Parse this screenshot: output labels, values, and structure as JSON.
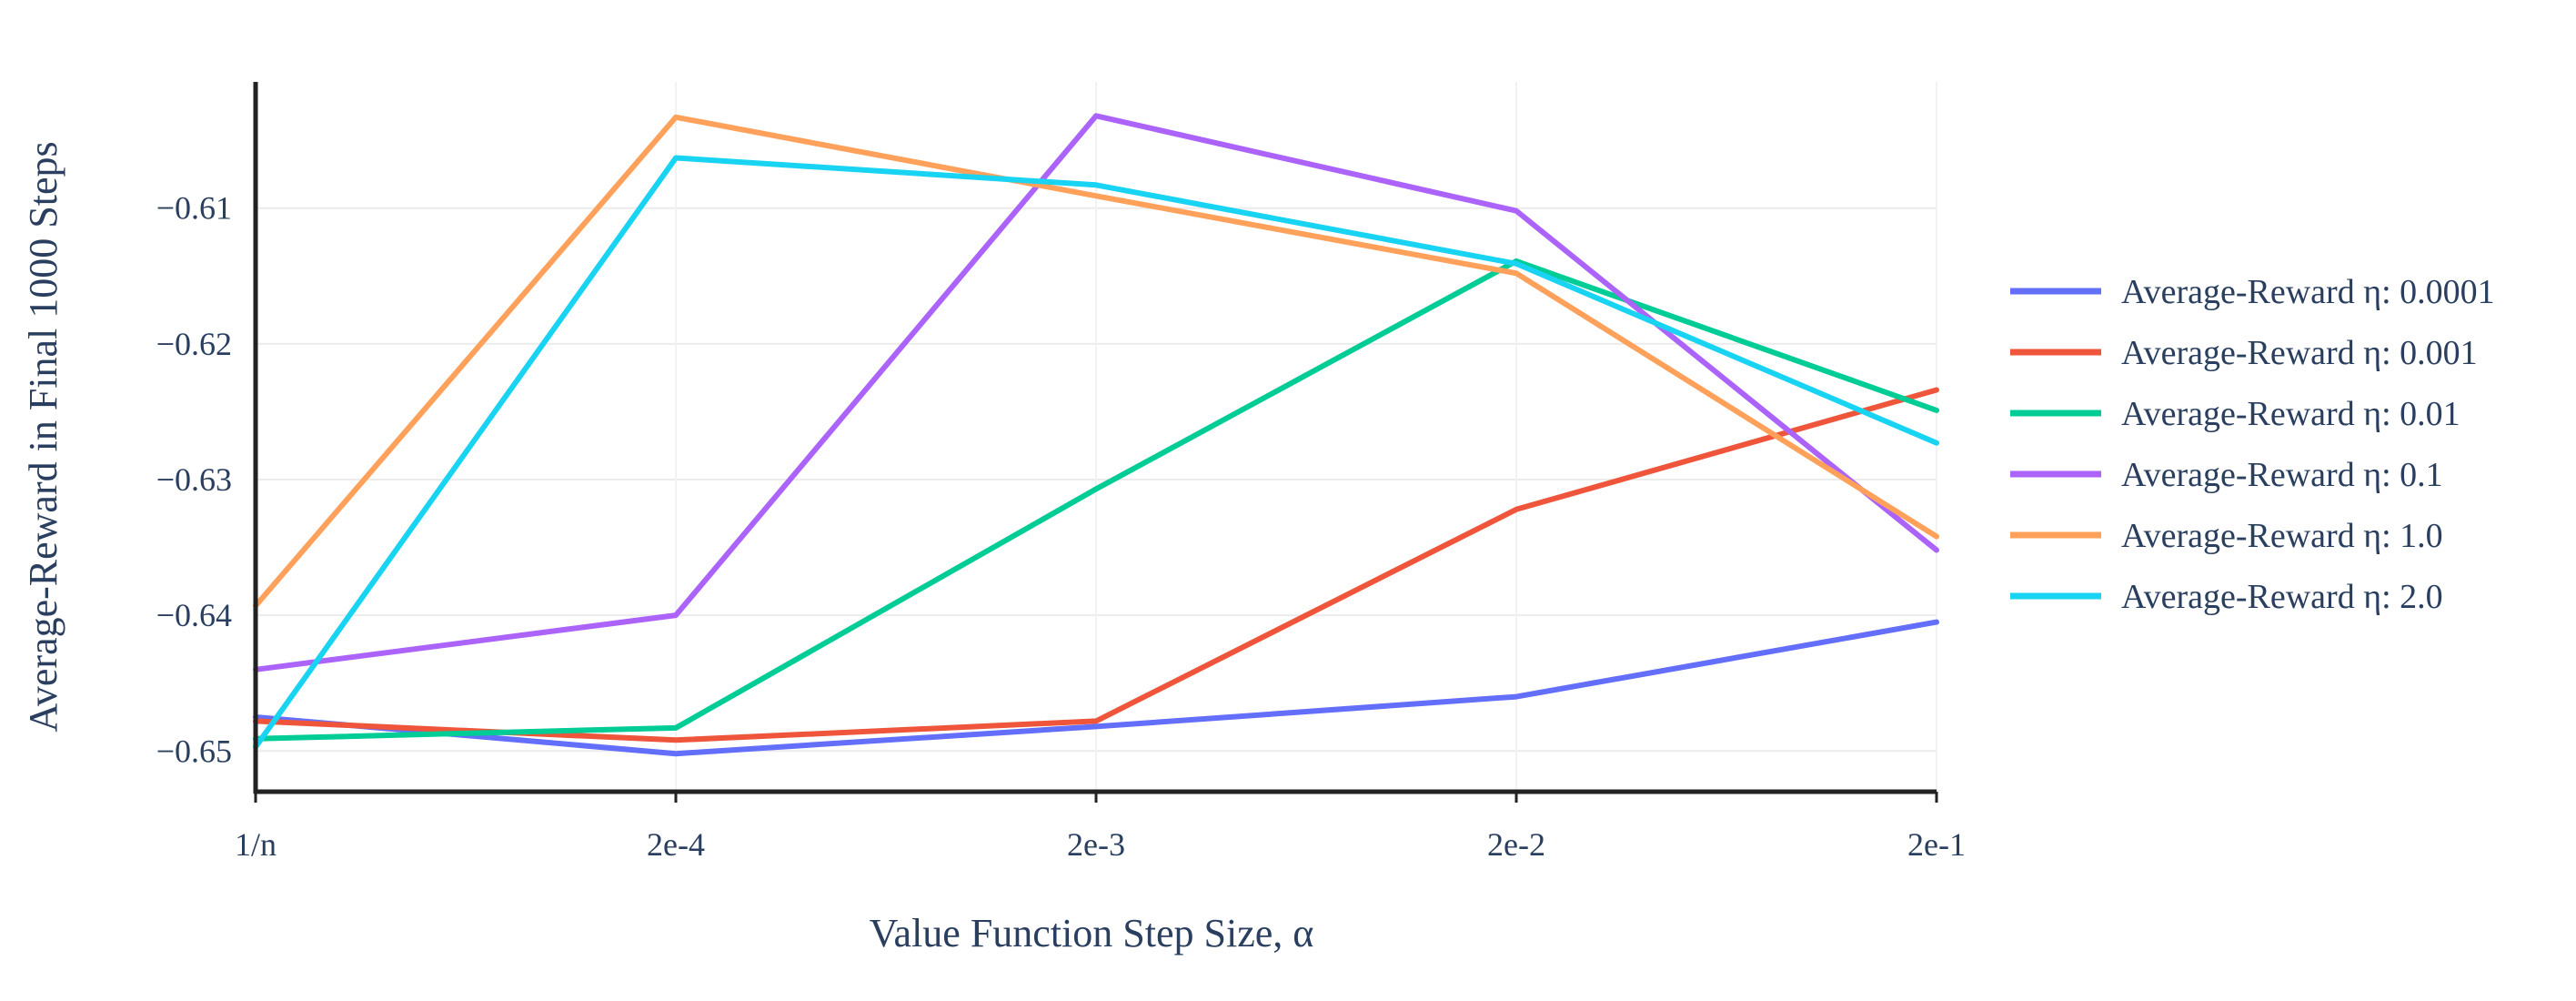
{
  "chart_data": {
    "type": "line",
    "title": "",
    "xlabel": "Value Function Step Size, α",
    "ylabel": "Average-Reward in Final 1000 Steps",
    "categories": [
      "1/n",
      "2e-4",
      "2e-3",
      "2e-2",
      "2e-1"
    ],
    "y_ticks": [
      "−0.65",
      "−0.64",
      "−0.63",
      "−0.62",
      "−0.61"
    ],
    "y_tick_values": [
      -0.65,
      -0.64,
      -0.63,
      -0.62,
      -0.61
    ],
    "ylim": [
      -0.653,
      -0.6007
    ],
    "grid": true,
    "legend_position": "right",
    "series": [
      {
        "name": "Average-Reward η: 0.0001",
        "color": "#636efa",
        "values": [
          -0.6475,
          -0.6502,
          -0.6482,
          -0.646,
          -0.6405
        ]
      },
      {
        "name": "Average-Reward η: 0.001",
        "color": "#ef553b",
        "values": [
          -0.6478,
          -0.6492,
          -0.6478,
          -0.6322,
          -0.6234
        ]
      },
      {
        "name": "Average-Reward η: 0.01",
        "color": "#00cc96",
        "values": [
          -0.6491,
          -0.6483,
          -0.6307,
          -0.6139,
          -0.6249
        ]
      },
      {
        "name": "Average-Reward η: 0.1",
        "color": "#ab63fa",
        "values": [
          -0.644,
          -0.64,
          -0.6032,
          -0.6102,
          -0.6352
        ]
      },
      {
        "name": "Average-Reward η: 1.0",
        "color": "#ffa15a",
        "values": [
          -0.6393,
          -0.6033,
          -0.6091,
          -0.6148,
          -0.6342
        ]
      },
      {
        "name": "Average-Reward η: 2.0",
        "color": "#19d3f3",
        "values": [
          -0.6497,
          -0.6063,
          -0.6083,
          -0.6141,
          -0.6273
        ]
      }
    ]
  }
}
